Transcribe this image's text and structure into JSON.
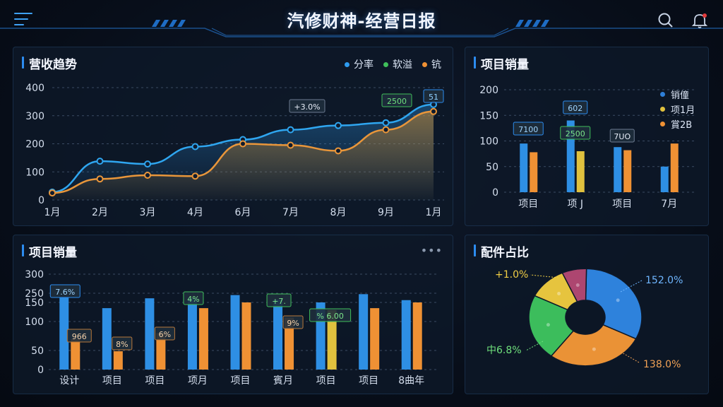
{
  "header": {
    "title": "汽修财神-经营日报",
    "menu_icon": "menu-icon",
    "search_icon": "search-icon",
    "bell_icon": "bell-icon"
  },
  "colors": {
    "blue": "#2e9cf0",
    "orange": "#ef9134",
    "yellow": "#e0c13e",
    "green": "#3fbf5a",
    "pink": "#b3466e",
    "accent": "#2c8cf0"
  },
  "revenue": {
    "title": "营收趋势",
    "legend": [
      "分率",
      "软溢",
      "钪"
    ],
    "chart_data": {
      "type": "line",
      "categories": [
        "1月",
        "2月",
        "3月",
        "4月",
        "6月",
        "7月",
        "8月",
        "9月",
        "1月"
      ],
      "yticks": [
        "0",
        "100",
        "200",
        "300",
        "400"
      ],
      "ylim": [
        0,
        400
      ],
      "series": [
        {
          "name": "分率",
          "values": [
            28,
            138,
            128,
            190,
            215,
            250,
            265,
            275,
            340
          ]
        },
        {
          "name": "钪",
          "values": [
            25,
            75,
            88,
            85,
            200,
            195,
            175,
            250,
            315
          ]
        }
      ],
      "annotations": [
        "+3.0%",
        "2500",
        "51"
      ]
    }
  },
  "sales_top": {
    "title": "项目销量",
    "legend": [
      "销僮",
      "项1月",
      "賞2B"
    ],
    "chart_data": {
      "type": "bar",
      "categories": [
        "项目",
        "项 J",
        "项目",
        "7月"
      ],
      "yticks": [
        "0",
        "50",
        "100",
        "150",
        "200"
      ],
      "ylim": [
        0,
        200
      ],
      "series": [
        {
          "name": "销僮",
          "values": [
            95,
            140,
            88,
            50
          ]
        },
        {
          "name": "項1月",
          "values": [
            78,
            80,
            82,
            95
          ]
        }
      ],
      "labels": [
        "7100",
        "602",
        "2500",
        "7UO"
      ]
    }
  },
  "sales_bottom": {
    "title": "项目销量",
    "more": "•••",
    "chart_data": {
      "type": "bar",
      "categories": [
        "设计",
        "项目",
        "项目",
        "项月",
        "项目",
        "賓月",
        "项目",
        "项目",
        "8曲年"
      ],
      "yticks": [
        "0",
        "50",
        "100",
        "150",
        "250",
        "300"
      ],
      "ylim": [
        0,
        300
      ],
      "series": [
        {
          "name": "blue",
          "values": [
            210,
            135,
            195,
            200,
            230,
            180,
            150,
            240,
            175
          ]
        },
        {
          "name": "orange",
          "values": [
            70,
            48,
            80,
            135,
            150,
            110,
            130,
            135,
            150
          ]
        }
      ],
      "labels": [
        "7.6%",
        "966",
        "8%",
        "6%",
        "4%",
        "+7.",
        "9%",
        "% 6.00"
      ]
    }
  },
  "parts": {
    "title": "配件占比",
    "chart_data": {
      "type": "pie",
      "slices": [
        {
          "label": "152.0%",
          "value": 32
        },
        {
          "label": "138.0%",
          "value": 28
        },
        {
          "label": "中6.8%",
          "value": 22
        },
        {
          "label": "+1.0%",
          "value": 11
        },
        {
          "label": "",
          "value": 7
        }
      ]
    }
  }
}
